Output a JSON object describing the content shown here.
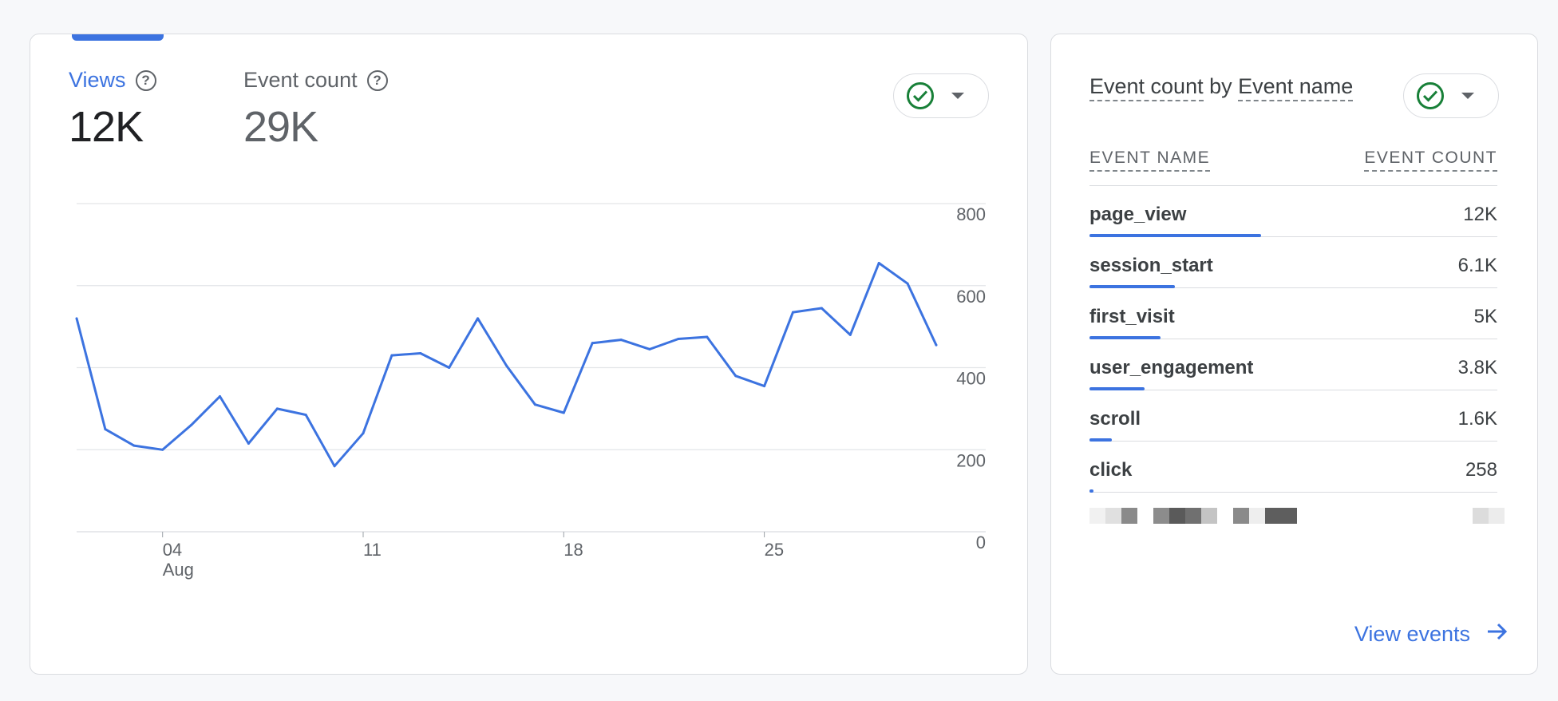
{
  "left_card": {
    "metrics": [
      {
        "label": "Views",
        "value": "12K"
      },
      {
        "label": "Event count",
        "value": "29K"
      }
    ]
  },
  "right_card": {
    "title_part1": "Event count",
    "title_by": "by",
    "title_part2": "Event name",
    "table": {
      "col_name": "EVENT NAME",
      "col_count": "EVENT COUNT",
      "rows": [
        {
          "name": "page_view",
          "count": "12K",
          "share": 0.42
        },
        {
          "name": "session_start",
          "count": "6.1K",
          "share": 0.21
        },
        {
          "name": "first_visit",
          "count": "5K",
          "share": 0.175
        },
        {
          "name": "user_engagement",
          "count": "3.8K",
          "share": 0.135
        },
        {
          "name": "scroll",
          "count": "1.6K",
          "share": 0.055
        },
        {
          "name": "click",
          "count": "258",
          "share": 0.01
        }
      ]
    },
    "link_label": "View events"
  },
  "colors": {
    "accent": "#3c73e0",
    "check": "#188038",
    "gridline": "#e3e5e8"
  },
  "icons": [
    "help-icon",
    "check-circle-icon",
    "caret-down-icon",
    "arrow-right-icon"
  ],
  "chart_data": {
    "type": "line",
    "title": "",
    "xlabel": "",
    "ylabel": "",
    "ylim": [
      0,
      800
    ],
    "yticks": [
      0,
      200,
      400,
      600,
      800
    ],
    "xticks": [
      {
        "day": 4,
        "label": "04",
        "sublabel": "Aug"
      },
      {
        "day": 11,
        "label": "11",
        "sublabel": ""
      },
      {
        "day": 18,
        "label": "18",
        "sublabel": ""
      },
      {
        "day": 25,
        "label": "25",
        "sublabel": ""
      }
    ],
    "x_start_day": 1,
    "x_end_day": 31,
    "grid": true,
    "series": [
      {
        "x": [
          1,
          2,
          3,
          4,
          5,
          6,
          7,
          8,
          9,
          10,
          11,
          12,
          13,
          14,
          15,
          16,
          17,
          18,
          19,
          20,
          21,
          22,
          23,
          24,
          25,
          26,
          27,
          28,
          29,
          30,
          31
        ],
        "values": [
          520,
          250,
          210,
          200,
          260,
          330,
          215,
          300,
          285,
          160,
          240,
          430,
          435,
          400,
          520,
          405,
          310,
          290,
          460,
          468,
          445,
          470,
          475,
          380,
          355,
          535,
          545,
          480,
          655,
          605,
          455
        ]
      }
    ]
  }
}
